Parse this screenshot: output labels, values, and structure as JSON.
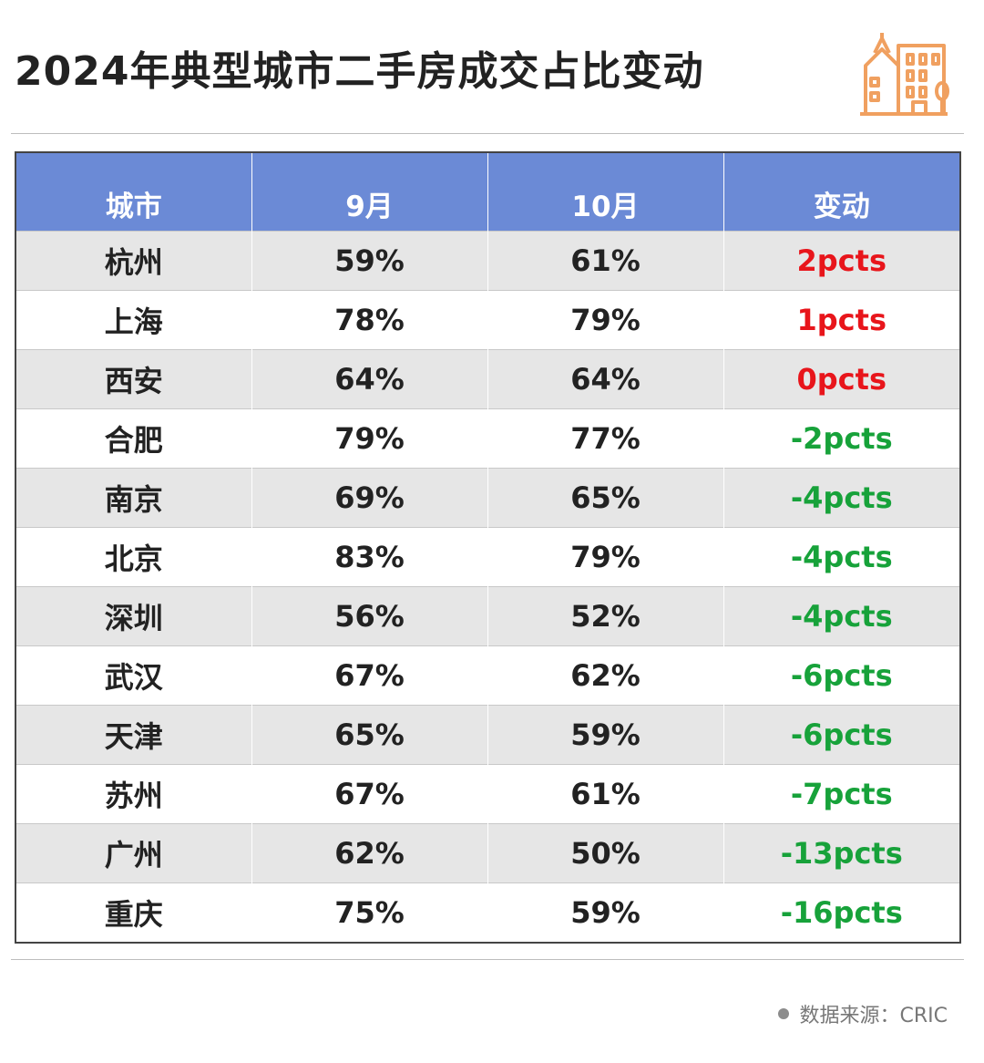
{
  "title": "2024年典型城市二手房成交占比变动",
  "colors": {
    "header_bg": "#6b8ad6",
    "positive": "#e8151b",
    "negative": "#17a23a",
    "icon": "#f0a060"
  },
  "icon": "city-buildings-icon",
  "table": {
    "headers": [
      "城市",
      "9月",
      "10月",
      "变动"
    ],
    "rows": [
      {
        "city": "杭州",
        "sep": "59%",
        "oct": "61%",
        "change": "2pcts",
        "dir": "pos"
      },
      {
        "city": "上海",
        "sep": "78%",
        "oct": "79%",
        "change": "1pcts",
        "dir": "pos"
      },
      {
        "city": "西安",
        "sep": "64%",
        "oct": "64%",
        "change": "0pcts",
        "dir": "pos"
      },
      {
        "city": "合肥",
        "sep": "79%",
        "oct": "77%",
        "change": "-2pcts",
        "dir": "neg"
      },
      {
        "city": "南京",
        "sep": "69%",
        "oct": "65%",
        "change": "-4pcts",
        "dir": "neg"
      },
      {
        "city": "北京",
        "sep": "83%",
        "oct": "79%",
        "change": "-4pcts",
        "dir": "neg"
      },
      {
        "city": "深圳",
        "sep": "56%",
        "oct": "52%",
        "change": "-4pcts",
        "dir": "neg"
      },
      {
        "city": "武汉",
        "sep": "67%",
        "oct": "62%",
        "change": "-6pcts",
        "dir": "neg"
      },
      {
        "city": "天津",
        "sep": "65%",
        "oct": "59%",
        "change": "-6pcts",
        "dir": "neg"
      },
      {
        "city": "苏州",
        "sep": "67%",
        "oct": "61%",
        "change": "-7pcts",
        "dir": "neg"
      },
      {
        "city": "广州",
        "sep": "62%",
        "oct": "50%",
        "change": "-13pcts",
        "dir": "neg"
      },
      {
        "city": "重庆",
        "sep": "75%",
        "oct": "59%",
        "change": "-16pcts",
        "dir": "neg"
      }
    ]
  },
  "source": "数据来源：CRIC"
}
